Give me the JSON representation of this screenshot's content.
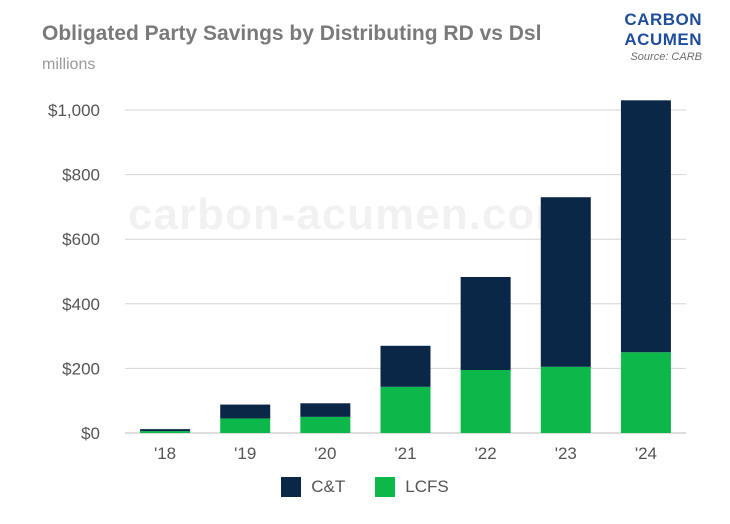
{
  "header": {
    "title": "Obligated Party Savings by Distributing RD vs Dsl",
    "subtitle": "millions"
  },
  "brand": {
    "line1": "CARBON",
    "line2": "ACUMEN",
    "source": "Source: CARB"
  },
  "watermark": "carbon-acumen.com",
  "colors": {
    "ct": "#0b2748",
    "lcfs": "#0cb84a",
    "grid": "#d6d6d6",
    "axis_text": "#555555"
  },
  "chart_data": {
    "type": "bar",
    "stacked": true,
    "title": "Obligated Party Savings by Distributing RD vs Dsl",
    "subtitle": "millions",
    "categories": [
      "'18",
      "'19",
      "'20",
      "'21",
      "'22",
      "'23",
      "'24"
    ],
    "series": [
      {
        "name": "LCFS",
        "values": [
          6,
          45,
          50,
          143,
          195,
          205,
          250
        ]
      },
      {
        "name": "C&T",
        "values": [
          6,
          43,
          42,
          127,
          288,
          525,
          780
        ]
      }
    ],
    "yticks": [
      "$0",
      "$200",
      "$400",
      "$600",
      "$800",
      "$1,000"
    ],
    "ytick_values": [
      0,
      200,
      400,
      600,
      800,
      1000
    ],
    "ylim": [
      0,
      1000
    ],
    "grid": true,
    "legend_position": "bottom-center"
  }
}
